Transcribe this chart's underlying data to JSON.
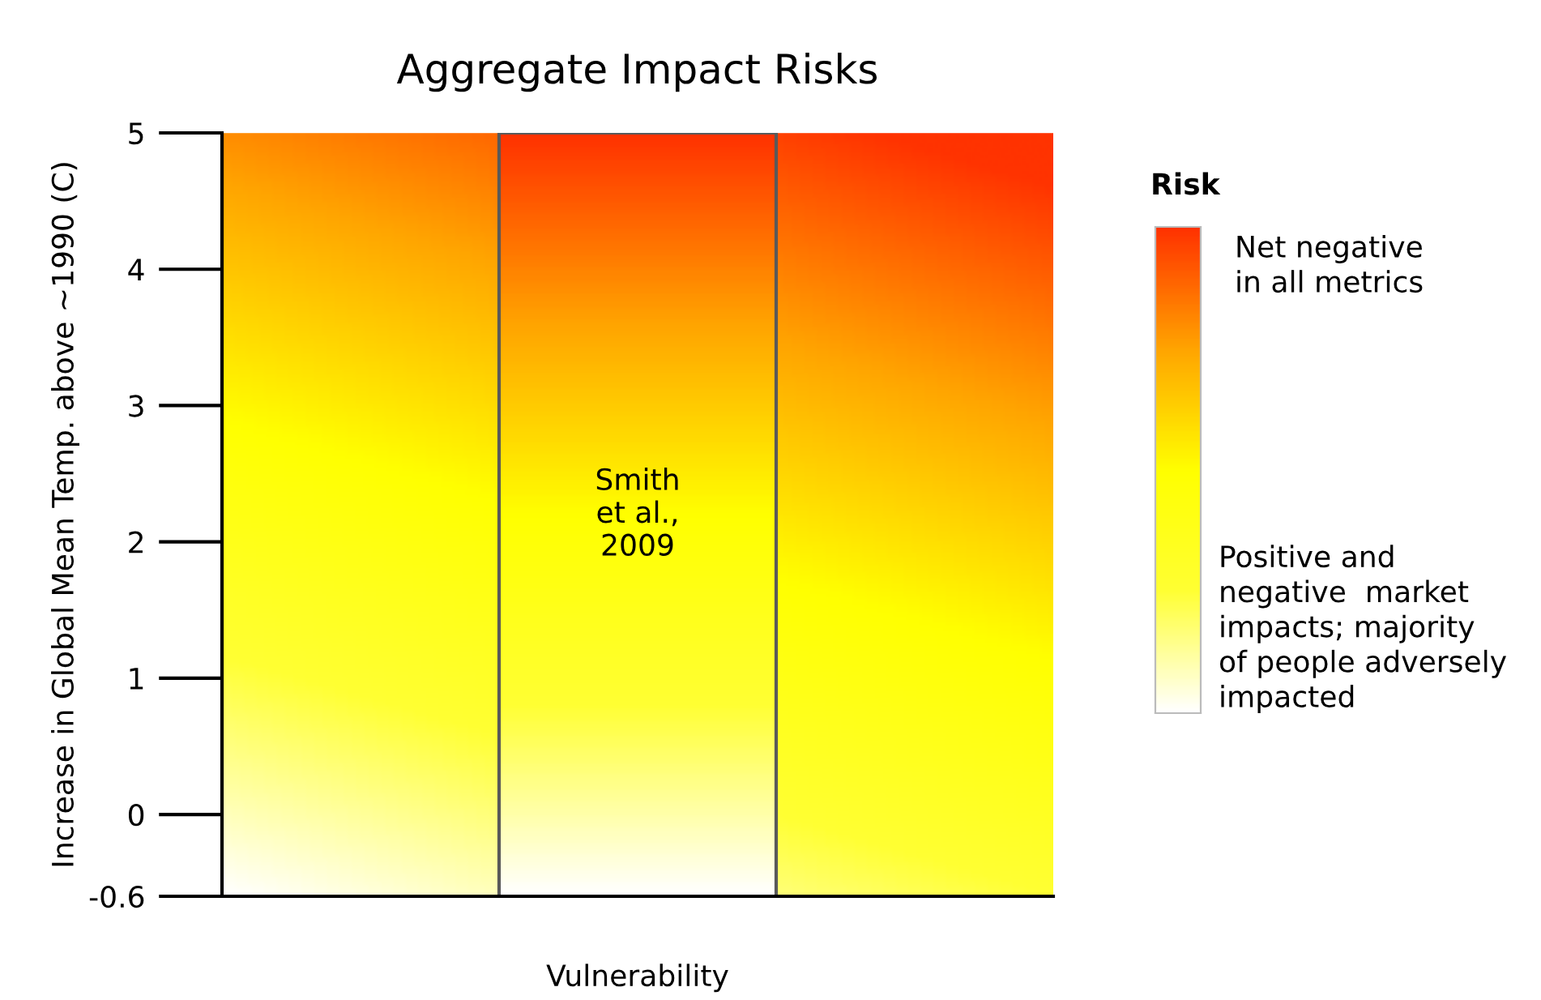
{
  "chart_data": {
    "type": "bar",
    "title": "Aggregate Impact Risks",
    "xlabel": "Vulnerability",
    "ylabel": "Increase in Global Mean Temp. above ~1990 (C)",
    "legend_title": "Risk",
    "categories": [
      null,
      null,
      null
    ],
    "values": [
      null,
      5.6,
      null
    ],
    "base": [
      null,
      -0.6,
      null
    ],
    "color": "#595959",
    "ylim": [
      -0.6,
      5
    ],
    "yticks": [
      -0.6,
      0,
      1,
      2,
      3,
      4,
      5
    ],
    "grid": false,
    "annotations": [
      "Smith\net al.,\n2009",
      "Net negative\nin all metrics",
      "Positive and\nnegative  market\nimpacts; majority\nof people adversely\nimpacted"
    ]
  }
}
